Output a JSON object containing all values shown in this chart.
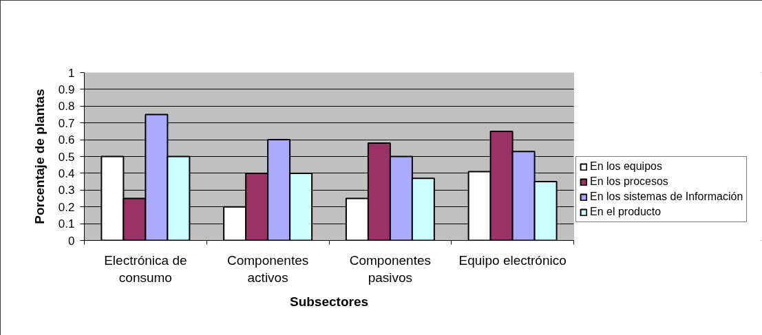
{
  "chart_data": {
    "type": "bar",
    "xlabel": "Subsectores",
    "ylabel": "Porcentaje de plantas",
    "categories": [
      "Electrónica de consumo",
      "Componentes activos",
      "Componentes pasivos",
      "Equipo electrónico"
    ],
    "series": [
      {
        "name": "En los equipos",
        "color": "#ffffff",
        "values": [
          0.5,
          0.2,
          0.25,
          0.41
        ]
      },
      {
        "name": "En los procesos",
        "color": "#993366",
        "values": [
          0.25,
          0.4,
          0.58,
          0.65
        ]
      },
      {
        "name": "En los sistemas de Información",
        "color": "#aaaaff",
        "values": [
          0.75,
          0.6,
          0.5,
          0.53
        ]
      },
      {
        "name": "En el producto",
        "color": "#ccffff",
        "values": [
          0.5,
          0.4,
          0.37,
          0.35
        ]
      }
    ],
    "ylim": [
      0,
      1
    ],
    "yticks": [
      0,
      0.1,
      0.2,
      0.3,
      0.4,
      0.5,
      0.6,
      0.7,
      0.8,
      0.9,
      1
    ],
    "grid": "y",
    "legend": "right"
  }
}
